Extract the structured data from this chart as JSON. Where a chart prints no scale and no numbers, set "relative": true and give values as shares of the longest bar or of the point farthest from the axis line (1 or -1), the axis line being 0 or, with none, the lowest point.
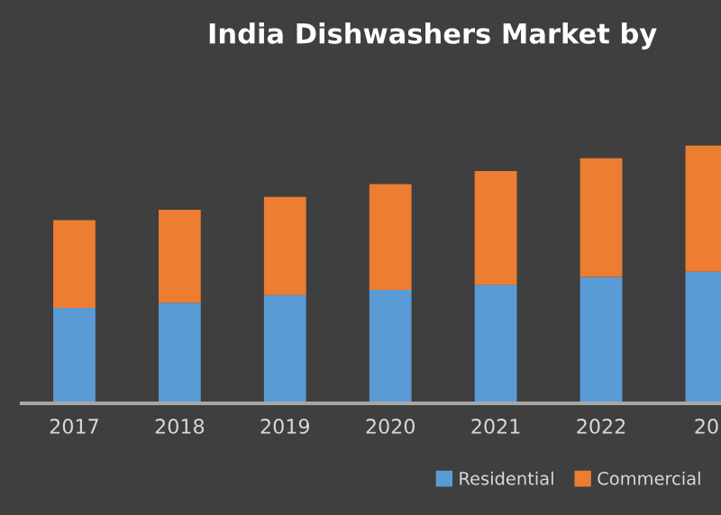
{
  "chart_data": {
    "type": "bar",
    "title": "India Dishwashers Market by",
    "relative": true,
    "stacked": true,
    "legend": "bottom right",
    "categories": [
      "2017",
      "2018",
      "2019",
      "2020",
      "2021",
      "2022",
      "20"
    ],
    "series": [
      {
        "name": "Residential",
        "color": "#5b9bd5",
        "values": [
          0.37,
          0.39,
          0.42,
          0.44,
          0.46,
          0.49,
          0.51
        ]
      },
      {
        "name": "Commercial",
        "color": "#ed7d31",
        "values": [
          0.34,
          0.36,
          0.38,
          0.41,
          0.44,
          0.46,
          0.49
        ]
      }
    ]
  }
}
